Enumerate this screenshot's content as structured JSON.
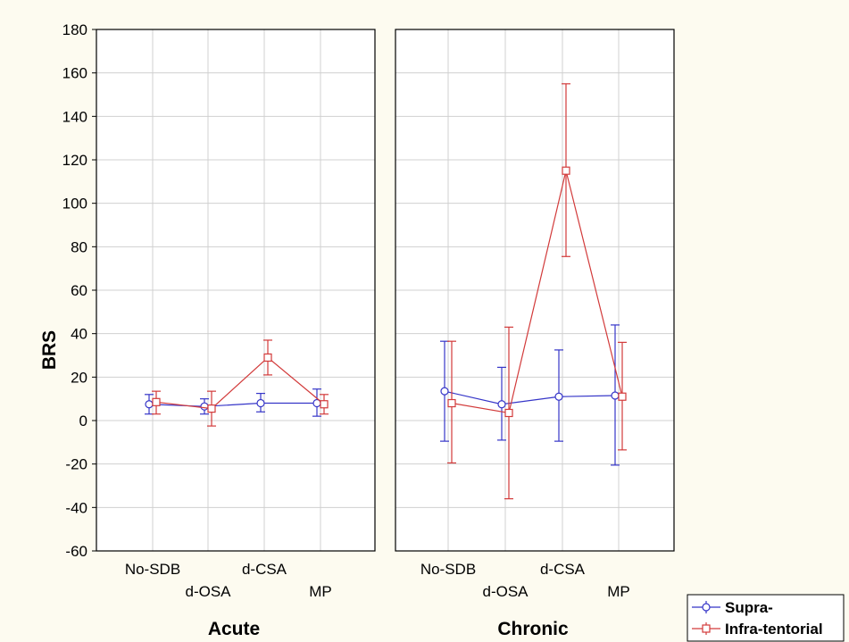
{
  "chart_data": {
    "type": "line",
    "ylabel": "BRS",
    "ylim": [
      -60,
      180
    ],
    "yticks": [
      -60,
      -40,
      -20,
      0,
      20,
      40,
      60,
      80,
      100,
      120,
      140,
      160,
      180
    ],
    "grid": true,
    "legend_position": "bottom-right",
    "categories": [
      "No-SDB",
      "d-OSA",
      "d-CSA",
      "MP"
    ],
    "series_styles": [
      {
        "name": "Supra-",
        "color": "#3535c8",
        "marker": "circle"
      },
      {
        "name": "Infra-tentorial",
        "color": "#d23a3a",
        "marker": "square"
      }
    ],
    "panels": [
      {
        "label": "Acute",
        "series": [
          {
            "name": "Supra-",
            "values": [
              7.5,
              6.5,
              8,
              8
            ],
            "lower": [
              3,
              3,
              4,
              2
            ],
            "upper": [
              12,
              10,
              12.5,
              14.5
            ]
          },
          {
            "name": "Infra-tentorial",
            "values": [
              8.5,
              5.5,
              29,
              7.5
            ],
            "lower": [
              3,
              -2.5,
              21,
              3
            ],
            "upper": [
              13.5,
              13.5,
              37,
              12
            ]
          }
        ]
      },
      {
        "label": "Chronic",
        "series": [
          {
            "name": "Supra-",
            "values": [
              13.5,
              7.5,
              11,
              11.5
            ],
            "lower": [
              -9.5,
              -9,
              -9.5,
              -20.5
            ],
            "upper": [
              36.5,
              24.5,
              32.5,
              44
            ]
          },
          {
            "name": "Infra-tentorial",
            "values": [
              8,
              3.5,
              115,
              11
            ],
            "lower": [
              -19.5,
              -36,
              75.5,
              -13.5
            ],
            "upper": [
              36.5,
              43,
              155,
              36
            ]
          }
        ]
      }
    ]
  }
}
